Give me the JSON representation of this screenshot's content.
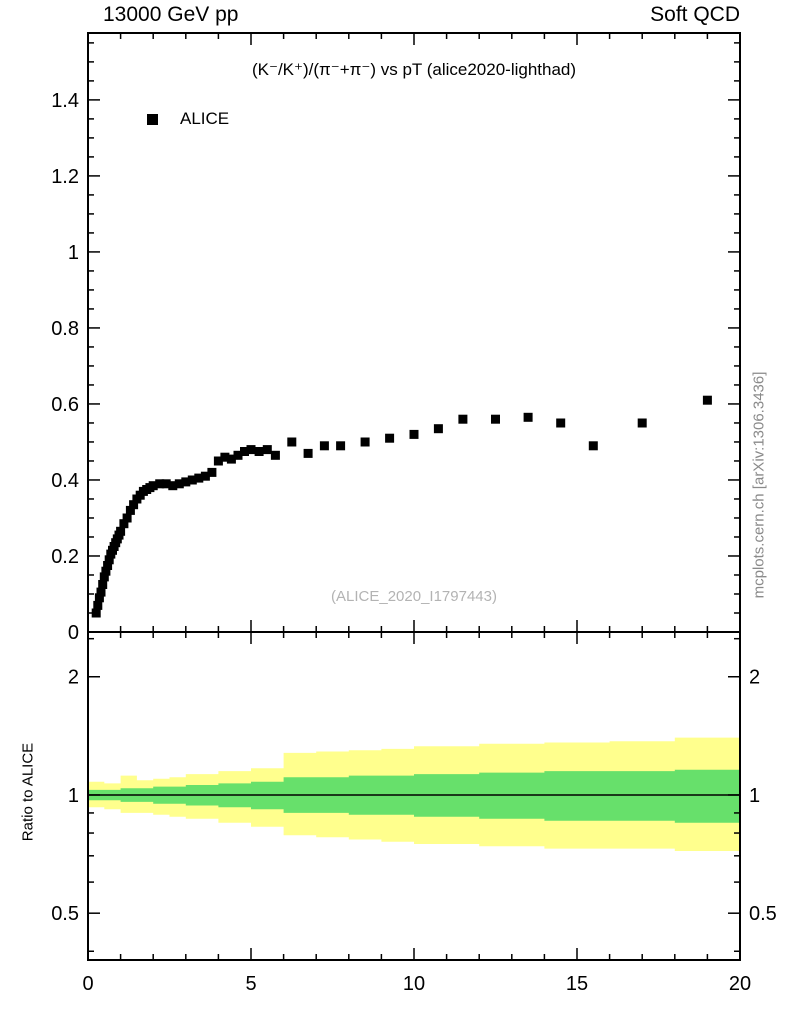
{
  "header": {
    "left": "13000 GeV pp",
    "right": "Soft QCD"
  },
  "annotations": {
    "watermark": "(ALICE_2020_I1797443)",
    "side_label": "mcplots.cern.ch [arXiv:1306.3436]"
  },
  "chart_data": [
    {
      "type": "scatter",
      "title": "(K⁻/K⁺)/(π⁻+π⁻) vs pT (alice2020-lighthad)",
      "xlabel": "",
      "ylabel": "",
      "xlim": [
        0,
        20
      ],
      "ylim": [
        0,
        1.576
      ],
      "yticks": [
        0,
        0.2,
        0.4,
        0.6,
        0.8,
        1,
        1.2,
        1.4
      ],
      "xticks": [
        0,
        5,
        10,
        15,
        20
      ],
      "grid": false,
      "legend_position": "top-left",
      "series": [
        {
          "name": "ALICE",
          "marker": "filled-square",
          "marker_size": 9,
          "color": "#000000",
          "points": [
            [
              0.25,
              0.05
            ],
            [
              0.3,
              0.07
            ],
            [
              0.35,
              0.09
            ],
            [
              0.4,
              0.105
            ],
            [
              0.45,
              0.125
            ],
            [
              0.5,
              0.145
            ],
            [
              0.55,
              0.16
            ],
            [
              0.6,
              0.175
            ],
            [
              0.65,
              0.19
            ],
            [
              0.7,
              0.205
            ],
            [
              0.75,
              0.215
            ],
            [
              0.8,
              0.225
            ],
            [
              0.85,
              0.235
            ],
            [
              0.9,
              0.245
            ],
            [
              0.95,
              0.255
            ],
            [
              1.0,
              0.265
            ],
            [
              1.1,
              0.285
            ],
            [
              1.2,
              0.3
            ],
            [
              1.3,
              0.32
            ],
            [
              1.4,
              0.335
            ],
            [
              1.5,
              0.35
            ],
            [
              1.6,
              0.36
            ],
            [
              1.7,
              0.37
            ],
            [
              1.8,
              0.375
            ],
            [
              1.9,
              0.38
            ],
            [
              2.0,
              0.385
            ],
            [
              2.2,
              0.39
            ],
            [
              2.4,
              0.39
            ],
            [
              2.6,
              0.385
            ],
            [
              2.8,
              0.39
            ],
            [
              3.0,
              0.395
            ],
            [
              3.2,
              0.4
            ],
            [
              3.4,
              0.405
            ],
            [
              3.6,
              0.41
            ],
            [
              3.8,
              0.42
            ],
            [
              4.0,
              0.45
            ],
            [
              4.2,
              0.46
            ],
            [
              4.4,
              0.455
            ],
            [
              4.6,
              0.465
            ],
            [
              4.8,
              0.475
            ],
            [
              5.0,
              0.48
            ],
            [
              5.25,
              0.475
            ],
            [
              5.5,
              0.48
            ],
            [
              5.75,
              0.465
            ],
            [
              6.25,
              0.5
            ],
            [
              6.75,
              0.47
            ],
            [
              7.25,
              0.49
            ],
            [
              7.75,
              0.49
            ],
            [
              8.5,
              0.5
            ],
            [
              9.25,
              0.51
            ],
            [
              10.0,
              0.52
            ],
            [
              10.75,
              0.535
            ],
            [
              11.5,
              0.56
            ],
            [
              12.5,
              0.56
            ],
            [
              13.5,
              0.565
            ],
            [
              14.5,
              0.55
            ],
            [
              15.5,
              0.49
            ],
            [
              17.0,
              0.55
            ],
            [
              19.0,
              0.61
            ]
          ]
        }
      ]
    },
    {
      "type": "band",
      "ylabel": "Ratio to ALICE",
      "yscale": "log",
      "xlim": [
        0,
        20
      ],
      "ylim": [
        0.38,
        2.6
      ],
      "yticks": [
        0.5,
        1,
        2
      ],
      "xticks": [
        0,
        5,
        10,
        15,
        20
      ],
      "reference_line": 1,
      "colors": {
        "outer": "#ffff8d",
        "inner": "#67e06b"
      },
      "bands": {
        "x": [
          0,
          0.5,
          1.0,
          1.5,
          2,
          2.5,
          3,
          4,
          5,
          6,
          7,
          8,
          9,
          10,
          12,
          14,
          16,
          18,
          20
        ],
        "yellow_hi": [
          1.08,
          1.07,
          1.12,
          1.09,
          1.1,
          1.11,
          1.13,
          1.15,
          1.17,
          1.28,
          1.29,
          1.3,
          1.31,
          1.33,
          1.35,
          1.36,
          1.37,
          1.4,
          1.4
        ],
        "yellow_lo": [
          0.93,
          0.92,
          0.9,
          0.9,
          0.89,
          0.88,
          0.87,
          0.85,
          0.83,
          0.79,
          0.78,
          0.77,
          0.76,
          0.75,
          0.74,
          0.73,
          0.73,
          0.72,
          0.72
        ],
        "green_hi": [
          1.03,
          1.03,
          1.04,
          1.04,
          1.05,
          1.05,
          1.06,
          1.07,
          1.08,
          1.11,
          1.11,
          1.12,
          1.12,
          1.13,
          1.14,
          1.15,
          1.15,
          1.16,
          1.16
        ],
        "green_lo": [
          0.97,
          0.97,
          0.96,
          0.96,
          0.95,
          0.95,
          0.94,
          0.93,
          0.92,
          0.9,
          0.9,
          0.89,
          0.89,
          0.88,
          0.87,
          0.86,
          0.86,
          0.85,
          0.85
        ]
      }
    }
  ]
}
